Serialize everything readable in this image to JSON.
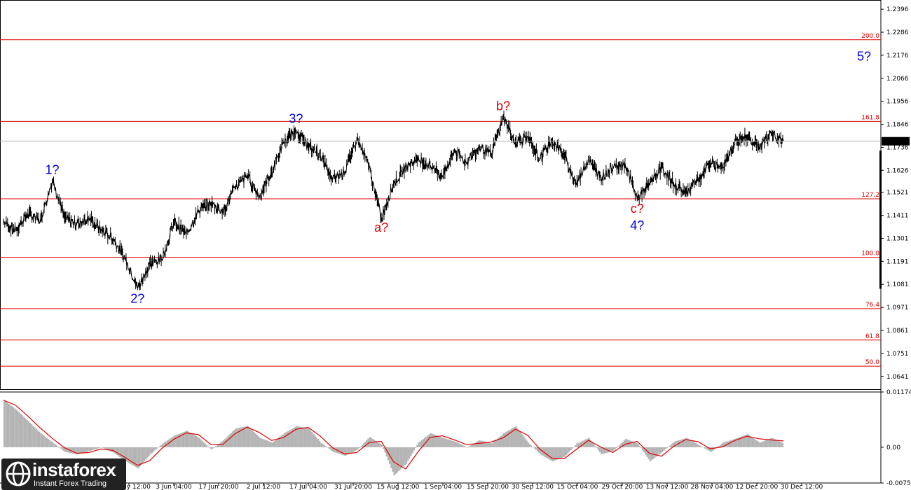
{
  "chart_data": [
    {
      "type": "line",
      "panel": "price",
      "title": "",
      "xlabel": "",
      "ylabel": "",
      "ylim": [
        1.058,
        1.244
      ],
      "y_ticks": [
        "1.2396",
        "1.2286",
        "1.2176",
        "1.2066",
        "1.1956",
        "1.1846",
        "1.1736",
        "1.1626",
        "1.1521",
        "1.1411",
        "1.1301",
        "1.1191",
        "1.1081",
        "1.0971",
        "1.0861",
        "1.0751",
        "1.0641"
      ],
      "x_ticks": [
        "19 May 12:00",
        "3 Jun 04:00",
        "17 Jun 20:00",
        "2 Jul 12:00",
        "17 Jul 04:00",
        "31 Jul 20:00",
        "15 Aug 12:00",
        "1 Sep 04:00",
        "15 Sep 20:00",
        "30 Sep 12:00",
        "15 Oct 04:00",
        "29 Oct 20:00",
        "13 Nov 12:00",
        "28 Nov 04:00",
        "12 Dec 20:00",
        "30 Dec 12:00"
      ],
      "current_price": "1.1765",
      "current_price_color": "#000000",
      "series": [
        {
          "color": "#000000",
          "points": [
            [
              "start",
              1.138
            ],
            [
              "",
              1.134
            ],
            [
              "",
              1.142
            ],
            [
              "",
              1.138
            ],
            [
              "1?",
              1.1575
            ],
            [
              "",
              1.14
            ],
            [
              "",
              1.137
            ],
            [
              "",
              1.14
            ],
            [
              "",
              1.134
            ],
            [
              "",
              1.13
            ],
            [
              "",
              1.12
            ],
            [
              "2?",
              1.106
            ],
            [
              "",
              1.118
            ],
            [
              "",
              1.12
            ],
            [
              "",
              1.138
            ],
            [
              "",
              1.132
            ],
            [
              "",
              1.143
            ],
            [
              "",
              1.147
            ],
            [
              "",
              1.143
            ],
            [
              "",
              1.154
            ],
            [
              "",
              1.16
            ],
            [
              "",
              1.15
            ],
            [
              "",
              1.162
            ],
            [
              "",
              1.176
            ],
            [
              "3?",
              1.182
            ],
            [
              "",
              1.174
            ],
            [
              "",
              1.17
            ],
            [
              "",
              1.158
            ],
            [
              "",
              1.162
            ],
            [
              "",
              1.178
            ],
            [
              "",
              1.164
            ],
            [
              "a?",
              1.14
            ],
            [
              "",
              1.156
            ],
            [
              "",
              1.164
            ],
            [
              "",
              1.168
            ],
            [
              "",
              1.165
            ],
            [
              "",
              1.16
            ],
            [
              "",
              1.172
            ],
            [
              "",
              1.166
            ],
            [
              "",
              1.174
            ],
            [
              "",
              1.17
            ],
            [
              "b?",
              1.188
            ],
            [
              "",
              1.176
            ],
            [
              "",
              1.179
            ],
            [
              "",
              1.168
            ],
            [
              "",
              1.177
            ],
            [
              "",
              1.17
            ],
            [
              "",
              1.156
            ],
            [
              "",
              1.168
            ],
            [
              "",
              1.159
            ],
            [
              "",
              1.164
            ],
            [
              "",
              1.166
            ],
            [
              "c?",
              1.149
            ],
            [
              "",
              1.156
            ],
            [
              "",
              1.164
            ],
            [
              "",
              1.156
            ],
            [
              "",
              1.152
            ],
            [
              "",
              1.158
            ],
            [
              "",
              1.166
            ],
            [
              "",
              1.164
            ],
            [
              "",
              1.176
            ],
            [
              "",
              1.179
            ],
            [
              "",
              1.174
            ],
            [
              "",
              1.18
            ],
            [
              "end",
              1.1765
            ]
          ]
        }
      ],
      "fib_levels": [
        {
          "label": "200.0",
          "value": 1.225
        },
        {
          "label": "161.8",
          "value": 1.186
        },
        {
          "label": "127.2",
          "value": 1.149
        },
        {
          "label": "100.0",
          "value": 1.121
        },
        {
          "label": "76.4",
          "value": 1.0965
        },
        {
          "label": "61.8",
          "value": 1.0815
        },
        {
          "label": "50.0",
          "value": 1.069
        }
      ],
      "fib_color": "#e00000",
      "wave_labels": [
        {
          "text": "1?",
          "ref": 1.1575,
          "color": "#0000dd",
          "at": "above"
        },
        {
          "text": "2?",
          "ref": 1.106,
          "color": "#0000dd",
          "at": "below"
        },
        {
          "text": "3?",
          "ref": 1.182,
          "color": "#0000dd",
          "at": "above"
        },
        {
          "text": "a?",
          "ref": 1.14,
          "color": "#dd0000",
          "at": "below"
        },
        {
          "text": "b?",
          "ref": 1.188,
          "color": "#dd0000",
          "at": "above"
        },
        {
          "text": "c?",
          "ref": 1.149,
          "color": "#dd0000",
          "at": "below"
        },
        {
          "text": "4?",
          "ref": 1.149,
          "color": "#0000dd",
          "at": "below2"
        },
        {
          "text": "5?",
          "ref": 1.217,
          "color": "#0000dd",
          "at": "right"
        }
      ]
    },
    {
      "type": "area",
      "panel": "oscillator",
      "ylim": [
        -0.00759,
        0.01174
      ],
      "y_ticks": [
        "0.01174",
        "0.00",
        "-0.00759"
      ],
      "histogram_color": "#b4b4b4",
      "signal_color": "#e00000",
      "values": [
        0.01,
        0.008,
        0.0055,
        0.003,
        0.001,
        -0.001,
        -0.0015,
        -0.0008,
        0.0,
        -0.0012,
        -0.003,
        -0.0045,
        -0.0015,
        0.0008,
        0.0025,
        0.0035,
        0.002,
        -0.0005,
        0.0015,
        0.004,
        0.0045,
        0.002,
        0.001,
        0.003,
        0.0045,
        0.004,
        0.001,
        -0.001,
        -0.0018,
        -0.0005,
        0.0022,
        0.0005,
        -0.006,
        -0.0035,
        0.001,
        0.003,
        0.002,
        0.0012,
        0.0,
        0.0015,
        0.0008,
        0.003,
        0.0045,
        0.001,
        -0.0015,
        -0.003,
        -0.002,
        0.0008,
        0.002,
        -0.0015,
        -0.0008,
        0.0018,
        0.0008,
        -0.003,
        -0.001,
        0.0012,
        0.002,
        0.0005,
        -0.001,
        0.001,
        0.0018,
        0.0028,
        0.001,
        0.002,
        0.0008
      ]
    }
  ],
  "logo": {
    "name": "instaforex",
    "tagline": "Instant Forex Trading"
  }
}
